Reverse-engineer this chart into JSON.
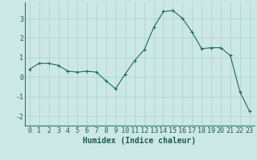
{
  "x": [
    0,
    1,
    2,
    3,
    4,
    5,
    6,
    7,
    8,
    9,
    10,
    11,
    12,
    13,
    14,
    15,
    16,
    17,
    18,
    19,
    20,
    21,
    22,
    23
  ],
  "y": [
    0.4,
    0.7,
    0.7,
    0.6,
    0.3,
    0.25,
    0.3,
    0.25,
    -0.2,
    -0.6,
    0.15,
    0.85,
    1.4,
    2.55,
    3.35,
    3.4,
    3.0,
    2.3,
    1.45,
    1.5,
    1.5,
    1.1,
    -0.75,
    -1.75
  ],
  "line_color": "#1a6b5e",
  "marker": "+",
  "marker_size": 3,
  "marker_lw": 0.8,
  "bg_color": "#cce8e4",
  "grid_color": "#aacfcc",
  "xlabel": "Humidex (Indice chaleur)",
  "xlabel_fontsize": 7,
  "tick_fontsize": 6,
  "ylim": [
    -2.5,
    3.8
  ],
  "xlim": [
    -0.5,
    23.5
  ],
  "yticks": [
    -2,
    -1,
    0,
    1,
    2,
    3
  ],
  "xticks": [
    0,
    1,
    2,
    3,
    4,
    5,
    6,
    7,
    8,
    9,
    10,
    11,
    12,
    13,
    14,
    15,
    16,
    17,
    18,
    19,
    20,
    21,
    22,
    23
  ],
  "spine_color": "#2a7a6a",
  "line_width": 0.8
}
